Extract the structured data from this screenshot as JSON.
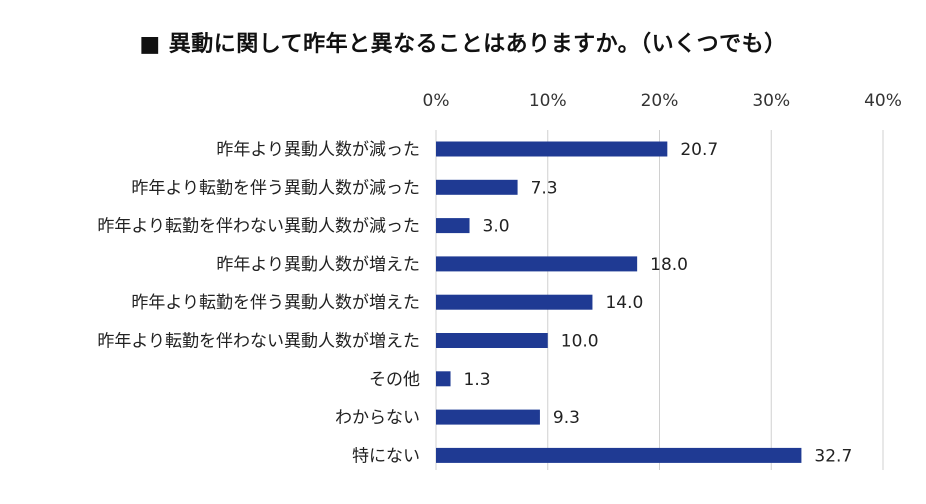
{
  "chart_data": {
    "type": "bar",
    "orientation": "horizontal",
    "title": "■ 異動に関して昨年と異なることはありますか。（いくつでも）",
    "categories": [
      "昨年より異動人数が減った",
      "昨年より転勤を伴う異動人数が減った",
      "昨年より転勤を伴わない異動人数が減った",
      "昨年より異動人数が増えた",
      "昨年より転勤を伴う異動人数が増えた",
      "昨年より転勤を伴わない異動人数が増えた",
      "その他",
      "わからない",
      "特にない"
    ],
    "values": [
      20.7,
      7.3,
      3.0,
      18.0,
      14.0,
      10.0,
      1.3,
      9.3,
      32.7
    ],
    "value_labels": [
      "20.7",
      "7.3",
      "3.0",
      "18.0",
      "14.0",
      "10.0",
      "1.3",
      "9.3",
      "32.7"
    ],
    "xlim": [
      0,
      40
    ],
    "x_ticks": [
      0,
      10,
      20,
      30,
      40
    ],
    "x_tick_labels": [
      "0%",
      "10%",
      "20%",
      "30%",
      "40%"
    ],
    "xlabel": "",
    "ylabel": "",
    "grid": true,
    "bar_color": "#1f3a93",
    "grid_color": "#d0d0d0"
  }
}
